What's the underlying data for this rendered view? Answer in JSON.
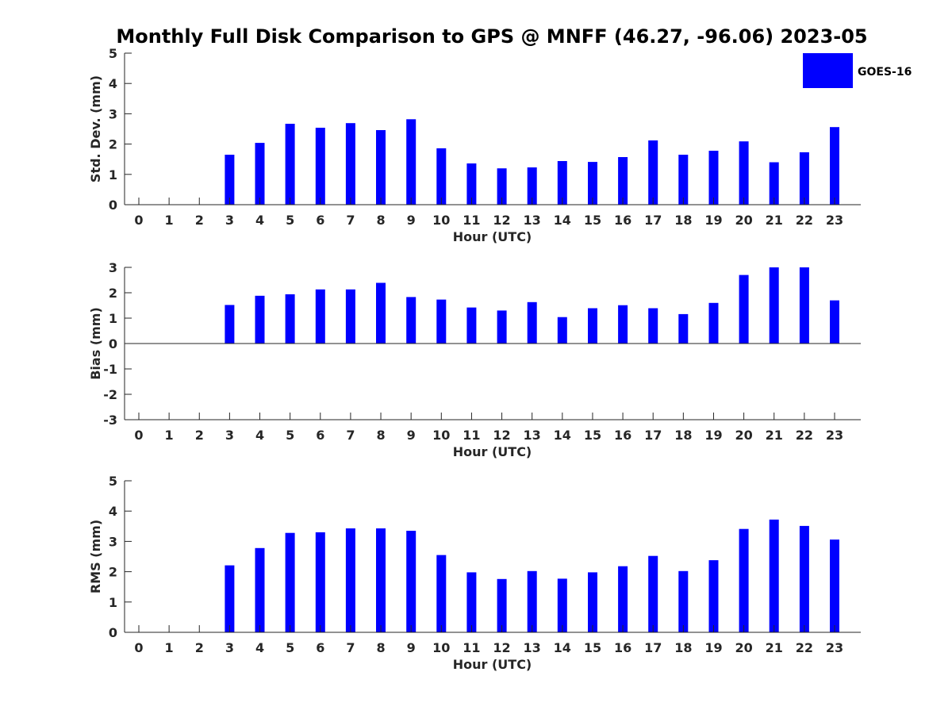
{
  "title": "Monthly Full Disk Comparison to GPS @ MNFF (46.27, -96.06) 2023-05",
  "legend": {
    "label": "GOES-16",
    "color": "#0000ff",
    "placement": "top-right"
  },
  "chart_data": [
    {
      "type": "bar",
      "ylabel": "Std. Dev. (mm)",
      "xlabel": "Hour (UTC)",
      "ylim": [
        0,
        5
      ],
      "yticks": [
        0,
        1,
        2,
        3,
        4,
        5
      ],
      "categories": [
        "0",
        "1",
        "2",
        "3",
        "4",
        "5",
        "6",
        "7",
        "8",
        "9",
        "10",
        "11",
        "12",
        "13",
        "14",
        "15",
        "16",
        "17",
        "18",
        "19",
        "20",
        "21",
        "22",
        "23"
      ],
      "series": [
        {
          "name": "GOES-16",
          "values": [
            null,
            null,
            null,
            1.65,
            2.04,
            2.67,
            2.54,
            2.69,
            2.46,
            2.82,
            1.86,
            1.36,
            1.2,
            1.23,
            1.44,
            1.41,
            1.57,
            2.12,
            1.65,
            1.78,
            2.09,
            1.4,
            1.73,
            2.56
          ]
        }
      ]
    },
    {
      "type": "bar",
      "ylabel": "Bias (mm)",
      "xlabel": "Hour (UTC)",
      "ylim": [
        -3,
        3
      ],
      "yticks": [
        -3,
        -2,
        -1,
        0,
        1,
        2,
        3
      ],
      "categories": [
        "0",
        "1",
        "2",
        "3",
        "4",
        "5",
        "6",
        "7",
        "8",
        "9",
        "10",
        "11",
        "12",
        "13",
        "14",
        "15",
        "16",
        "17",
        "18",
        "19",
        "20",
        "21",
        "22",
        "23"
      ],
      "series": [
        {
          "name": "GOES-16",
          "values": [
            null,
            null,
            null,
            1.52,
            1.88,
            1.94,
            2.13,
            2.13,
            2.39,
            1.83,
            1.73,
            1.42,
            1.3,
            1.63,
            1.04,
            1.39,
            1.51,
            1.39,
            1.16,
            1.6,
            2.7,
            3.0,
            3.0,
            1.7
          ]
        }
      ]
    },
    {
      "type": "bar",
      "ylabel": "RMS (mm)",
      "xlabel": "Hour (UTC)",
      "ylim": [
        0,
        5
      ],
      "yticks": [
        0,
        1,
        2,
        3,
        4,
        5
      ],
      "categories": [
        "0",
        "1",
        "2",
        "3",
        "4",
        "5",
        "6",
        "7",
        "8",
        "9",
        "10",
        "11",
        "12",
        "13",
        "14",
        "15",
        "16",
        "17",
        "18",
        "19",
        "20",
        "21",
        "22",
        "23"
      ],
      "series": [
        {
          "name": "GOES-16",
          "values": [
            null,
            null,
            null,
            2.21,
            2.78,
            3.28,
            3.3,
            3.43,
            3.43,
            3.35,
            2.55,
            1.98,
            1.76,
            2.02,
            1.77,
            1.98,
            2.18,
            2.52,
            2.02,
            2.38,
            3.41,
            3.72,
            3.51,
            3.06
          ]
        }
      ]
    }
  ]
}
